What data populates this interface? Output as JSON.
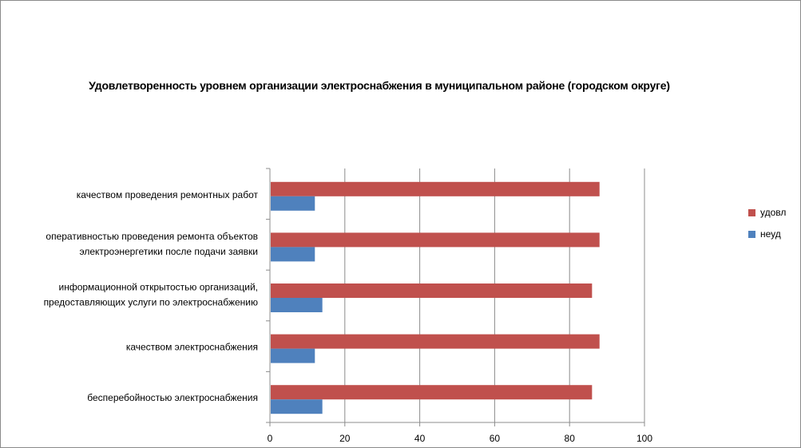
{
  "chart_data": {
    "type": "bar",
    "orientation": "horizontal",
    "title": "Удовлетворенность уровнем организации электроснабжения в муниципальном районе (городском округе)",
    "categories": [
      [
        "качеством проведения ремонтных работ"
      ],
      [
        "оперативностью проведения ремонта объектов",
        "электроэнергетики после подачи заявки"
      ],
      [
        "информационной открытостью организаций,",
        "предоставляющих услуги по электроснабжению"
      ],
      [
        "качеством электроснабжения"
      ],
      [
        "бесперебойностью электроснабжения"
      ]
    ],
    "series": [
      {
        "name": "удовл",
        "color": "#c0504d",
        "values": [
          88,
          88,
          86,
          88,
          86
        ]
      },
      {
        "name": "неуд",
        "color": "#4f81bd",
        "values": [
          12,
          12,
          14,
          12,
          14
        ]
      }
    ],
    "xlim": [
      0,
      100
    ],
    "xticks": [
      "0",
      "20",
      "40",
      "60",
      "80",
      "100"
    ],
    "grid": "vertical",
    "legend_position": "right"
  }
}
